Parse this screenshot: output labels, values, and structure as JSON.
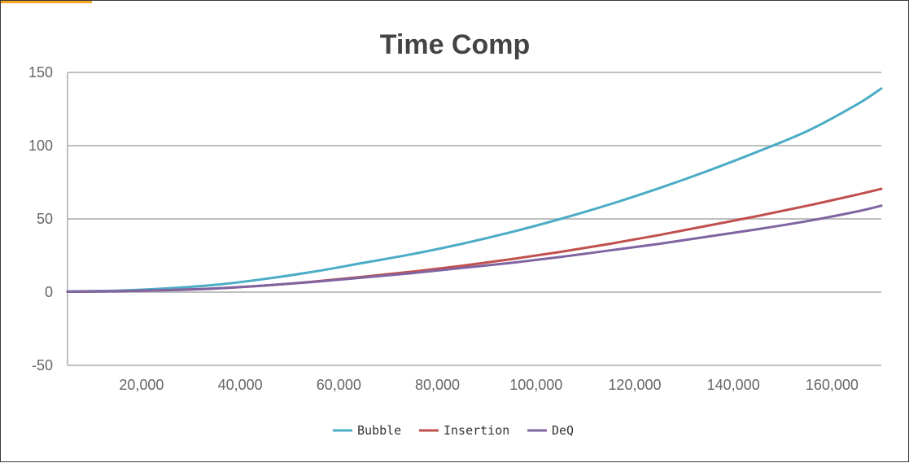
{
  "chart_data": {
    "type": "line",
    "title": "Time Comp",
    "xlabel": "",
    "ylabel": "",
    "xlim": [
      5000,
      170000
    ],
    "ylim": [
      -50,
      150
    ],
    "y_ticks": [
      150,
      100,
      50,
      0,
      -50
    ],
    "y_tick_labels": [
      "150",
      "100",
      "50",
      "0",
      "-50"
    ],
    "x_ticks": [
      20000,
      40000,
      60000,
      80000,
      100000,
      120000,
      140000,
      160000
    ],
    "x_tick_labels": [
      "20,000",
      "40,000",
      "60,000",
      "80,000",
      "100,000",
      "120,000",
      "140,000",
      "160,000"
    ],
    "grid": "horizontal",
    "legend_position": "bottom",
    "x": [
      5000,
      15000,
      25000,
      35000,
      45000,
      55000,
      65000,
      75000,
      85000,
      95000,
      105000,
      115000,
      125000,
      135000,
      145000,
      155000,
      165000,
      170000
    ],
    "series": [
      {
        "name": "Bubble",
        "color": "#4bacc6",
        "values": [
          0.5,
          1,
          2.5,
          5,
          9,
          14,
          20,
          26,
          33,
          41,
          50,
          60,
          71,
          83,
          96,
          110,
          128,
          139
        ]
      },
      {
        "name": "Insertion",
        "color": "#c0504d",
        "values": [
          0.3,
          0.6,
          1.3,
          2.5,
          4.5,
          7.2,
          10.5,
          14,
          18,
          22.5,
          27.5,
          33,
          39,
          45.5,
          52,
          59,
          66.5,
          70.5
        ]
      },
      {
        "name": "DeQ",
        "color": "#8064a2",
        "values": [
          0.3,
          0.6,
          1.3,
          2.5,
          4.5,
          7,
          10,
          13,
          16.5,
          20,
          24,
          28.5,
          33,
          38,
          43,
          48.5,
          55,
          59
        ]
      }
    ]
  }
}
